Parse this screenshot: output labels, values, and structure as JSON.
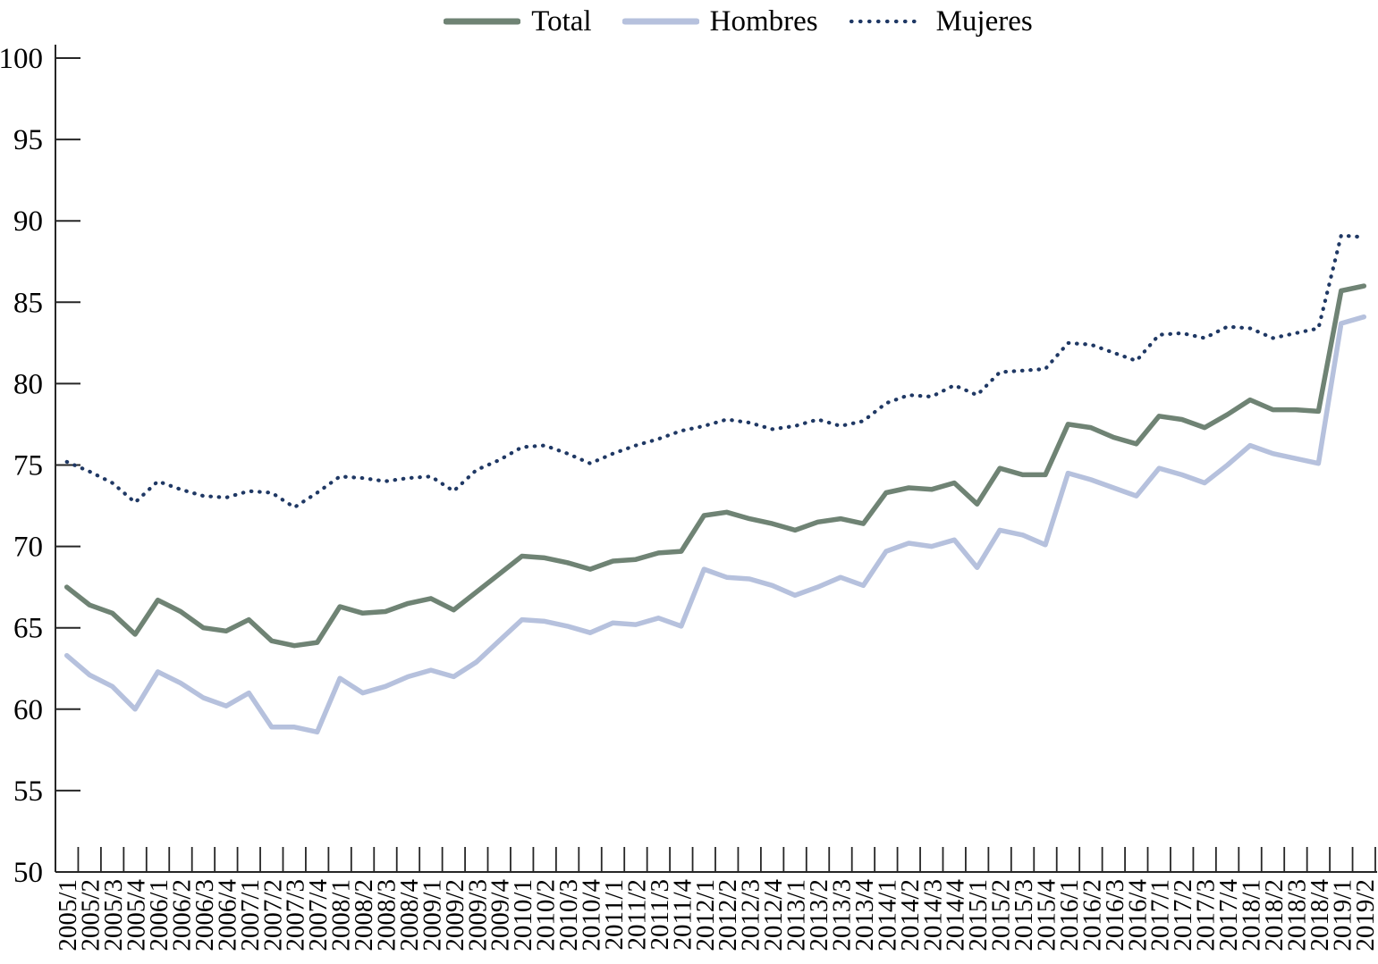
{
  "chart_data": {
    "type": "line",
    "title": "",
    "xlabel": "",
    "ylabel": "",
    "ylim": [
      50,
      100
    ],
    "yticks": [
      50,
      55,
      60,
      65,
      70,
      75,
      80,
      85,
      90,
      95,
      100
    ],
    "grid": false,
    "legend_position": "top",
    "axis_color": "#262626",
    "label_color": "#000000",
    "x_categories": [
      "2005/1",
      "2005/2",
      "2005/3",
      "2005/4",
      "2006/1",
      "2006/2",
      "2006/3",
      "2006/4",
      "2007/1",
      "2007/2",
      "2007/3",
      "2007/4",
      "2008/1",
      "2008/2",
      "2008/3",
      "2008/4",
      "2009/1",
      "2009/2",
      "2009/3",
      "2009/4",
      "2010/1",
      "2010/2",
      "2010/3",
      "2010/4",
      "2011/1",
      "2011/2",
      "2011/3",
      "2011/4",
      "2012/1",
      "2012/2",
      "2012/3",
      "2012/4",
      "2013/1",
      "2013/2",
      "2013/3",
      "2013/4",
      "2014/1",
      "2014/2",
      "2014/3",
      "2014/4",
      "2015/1",
      "2015/2",
      "2015/3",
      "2015/4",
      "2016/1",
      "2016/2",
      "2016/3",
      "2016/4",
      "2017/1",
      "2017/2",
      "2017/3",
      "2017/4",
      "2018/1",
      "2018/2",
      "2018/3",
      "2018/4",
      "2019/1",
      "2019/2"
    ],
    "series": [
      {
        "name": "Total",
        "style": "solid",
        "color": "#6f8374",
        "values": [
          67.5,
          66.4,
          65.9,
          64.6,
          66.7,
          66.0,
          65.0,
          64.8,
          65.5,
          64.2,
          63.9,
          64.1,
          66.3,
          65.9,
          66.0,
          66.5,
          66.8,
          66.1,
          67.2,
          68.3,
          69.4,
          69.3,
          69.0,
          68.6,
          69.1,
          69.2,
          69.6,
          69.7,
          71.9,
          72.1,
          71.7,
          71.4,
          71.0,
          71.5,
          71.7,
          71.4,
          73.3,
          73.6,
          73.5,
          73.9,
          72.6,
          74.8,
          74.4,
          74.4,
          77.5,
          77.3,
          76.7,
          76.3,
          78.0,
          77.8,
          77.3,
          78.1,
          79.0,
          78.4,
          78.4,
          78.3,
          85.7,
          86.0
        ]
      },
      {
        "name": "Hombres",
        "style": "solid",
        "color": "#b6c1dd",
        "values": [
          63.3,
          62.1,
          61.4,
          60.0,
          62.3,
          61.6,
          60.7,
          60.2,
          61.0,
          58.9,
          58.9,
          58.6,
          61.9,
          61.0,
          61.4,
          62.0,
          62.4,
          62.0,
          62.9,
          64.2,
          65.5,
          65.4,
          65.1,
          64.7,
          65.3,
          65.2,
          65.6,
          65.1,
          68.6,
          68.1,
          68.0,
          67.6,
          67.0,
          67.5,
          68.1,
          67.6,
          69.7,
          70.2,
          70.0,
          70.4,
          68.7,
          71.0,
          70.7,
          70.1,
          74.5,
          74.1,
          73.6,
          73.1,
          74.8,
          74.4,
          73.9,
          75.0,
          76.2,
          75.7,
          75.4,
          75.1,
          83.7,
          84.1
        ]
      },
      {
        "name": "Mujeres",
        "style": "dotted",
        "color": "#1f3864",
        "values": [
          75.2,
          74.6,
          73.9,
          72.7,
          74.0,
          73.5,
          73.1,
          73.0,
          73.4,
          73.3,
          72.4,
          73.3,
          74.3,
          74.2,
          74.0,
          74.2,
          74.3,
          73.4,
          74.7,
          75.3,
          76.1,
          76.2,
          75.7,
          75.1,
          75.7,
          76.2,
          76.6,
          77.1,
          77.4,
          77.8,
          77.6,
          77.2,
          77.4,
          77.8,
          77.4,
          77.7,
          78.8,
          79.3,
          79.2,
          79.9,
          79.3,
          80.7,
          80.8,
          80.9,
          82.5,
          82.4,
          81.9,
          81.4,
          83.0,
          83.1,
          82.8,
          83.5,
          83.4,
          82.8,
          83.1,
          83.4,
          89.1,
          89.0
        ]
      }
    ]
  }
}
